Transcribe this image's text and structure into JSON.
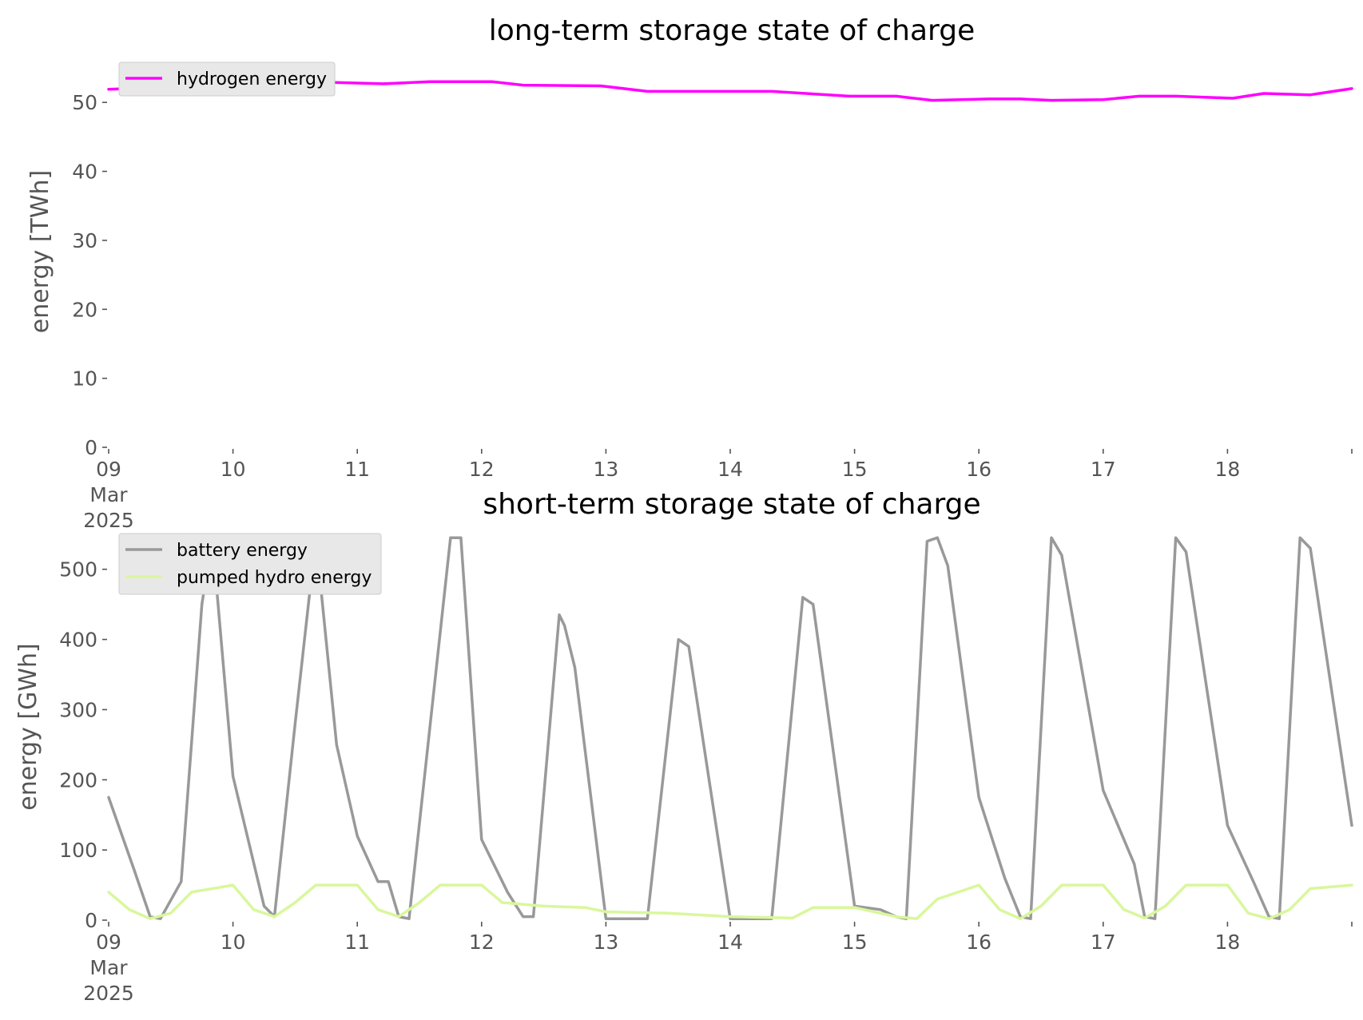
{
  "chart_data": [
    {
      "type": "line",
      "title": "long-term storage state of charge",
      "xlabel": "",
      "ylabel": "energy [TWh]",
      "xlim": [
        "2025-03-09 00:00",
        "2025-03-19 00:00"
      ],
      "ylim": [
        0,
        55
      ],
      "yticks": [
        0,
        10,
        20,
        30,
        40,
        50
      ],
      "xtick_labels": [
        [
          "09",
          "Mar",
          "2025"
        ],
        [
          "10"
        ],
        [
          "11"
        ],
        [
          "12"
        ],
        [
          "13"
        ],
        [
          "14"
        ],
        [
          "15"
        ],
        [
          "16"
        ],
        [
          "17"
        ],
        [
          "18"
        ]
      ],
      "legend_position": "top-left",
      "grid": false,
      "series": [
        {
          "name": "hydrogen energy",
          "color": "#ff00ff",
          "x": [
            "2025-03-09 00:00",
            "2025-03-09 12:00",
            "2025-03-10 03:00",
            "2025-03-10 14:00",
            "2025-03-11 05:00",
            "2025-03-11 14:00",
            "2025-03-12 02:00",
            "2025-03-12 08:00",
            "2025-03-12 23:00",
            "2025-03-13 08:00",
            "2025-03-13 23:00",
            "2025-03-14 08:00",
            "2025-03-14 23:00",
            "2025-03-15 08:00",
            "2025-03-15 15:00",
            "2025-03-16 02:00",
            "2025-03-16 08:00",
            "2025-03-16 14:00",
            "2025-03-17 00:00",
            "2025-03-17 07:00",
            "2025-03-17 14:00",
            "2025-03-18 01:00",
            "2025-03-18 07:00",
            "2025-03-18 16:00",
            "2025-03-19 00:00"
          ],
          "y": [
            51.9,
            52.2,
            52.8,
            53.0,
            52.7,
            53.0,
            53.0,
            52.5,
            52.4,
            51.6,
            51.6,
            51.6,
            50.9,
            50.9,
            50.3,
            50.5,
            50.5,
            50.3,
            50.4,
            50.9,
            50.9,
            50.6,
            51.3,
            51.1,
            52.0
          ]
        }
      ]
    },
    {
      "type": "line",
      "title": "short-term storage state of charge",
      "xlabel": "",
      "ylabel": "energy [GWh]",
      "xlim": [
        "2025-03-09 00:00",
        "2025-03-19 00:00"
      ],
      "ylim": [
        0,
        560
      ],
      "yticks": [
        0,
        100,
        200,
        300,
        400,
        500
      ],
      "xtick_labels": [
        [
          "09",
          "Mar",
          "2025"
        ],
        [
          "10"
        ],
        [
          "11"
        ],
        [
          "12"
        ],
        [
          "13"
        ],
        [
          "14"
        ],
        [
          "15"
        ],
        [
          "16"
        ],
        [
          "17"
        ],
        [
          "18"
        ]
      ],
      "legend_position": "top-left",
      "grid": false,
      "series": [
        {
          "name": "battery energy",
          "color": "#999999",
          "x": [
            "2025-03-09 00:00",
            "2025-03-09 05:00",
            "2025-03-09 08:00",
            "2025-03-09 10:00",
            "2025-03-09 14:00",
            "2025-03-09 18:00",
            "2025-03-09 20:00",
            "2025-03-10 00:00",
            "2025-03-10 06:00",
            "2025-03-10 08:00",
            "2025-03-10 12:00",
            "2025-03-10 16:00",
            "2025-03-10 20:00",
            "2025-03-11 00:00",
            "2025-03-11 04:00",
            "2025-03-11 06:00",
            "2025-03-11 08:00",
            "2025-03-11 10:00",
            "2025-03-11 18:00",
            "2025-03-11 20:00",
            "2025-03-12 00:00",
            "2025-03-12 05:00",
            "2025-03-12 08:00",
            "2025-03-12 10:00",
            "2025-03-12 15:00",
            "2025-03-12 16:00",
            "2025-03-12 18:00",
            "2025-03-13 00:00",
            "2025-03-13 08:00",
            "2025-03-13 14:00",
            "2025-03-13 16:00",
            "2025-03-14 00:00",
            "2025-03-14 08:00",
            "2025-03-14 14:00",
            "2025-03-14 16:00",
            "2025-03-15 00:00",
            "2025-03-15 05:00",
            "2025-03-15 08:00",
            "2025-03-15 10:00",
            "2025-03-15 14:00",
            "2025-03-15 16:00",
            "2025-03-15 18:00",
            "2025-03-16 00:00",
            "2025-03-16 05:00",
            "2025-03-16 08:00",
            "2025-03-16 10:00",
            "2025-03-16 14:00",
            "2025-03-16 16:00",
            "2025-03-17 00:00",
            "2025-03-17 06:00",
            "2025-03-17 08:00",
            "2025-03-17 10:00",
            "2025-03-17 14:00",
            "2025-03-17 16:00",
            "2025-03-18 00:00",
            "2025-03-18 05:00",
            "2025-03-18 08:00",
            "2025-03-18 10:00",
            "2025-03-18 14:00",
            "2025-03-18 16:00",
            "2025-03-19 00:00"
          ],
          "y": [
            175,
            70,
            5,
            2,
            55,
            450,
            545,
            205,
            20,
            5,
            280,
            545,
            250,
            120,
            55,
            55,
            5,
            2,
            545,
            545,
            115,
            40,
            5,
            5,
            435,
            420,
            360,
            2,
            2,
            400,
            390,
            2,
            2,
            460,
            450,
            20,
            15,
            5,
            2,
            540,
            545,
            505,
            175,
            60,
            5,
            2,
            545,
            520,
            185,
            80,
            5,
            2,
            545,
            525,
            135,
            55,
            5,
            2,
            545,
            530,
            135
          ]
        },
        {
          "name": "pumped hydro energy",
          "color": "#d9f79c",
          "x": [
            "2025-03-09 00:00",
            "2025-03-09 04:00",
            "2025-03-09 08:00",
            "2025-03-09 12:00",
            "2025-03-09 16:00",
            "2025-03-10 00:00",
            "2025-03-10 04:00",
            "2025-03-10 08:00",
            "2025-03-10 12:00",
            "2025-03-10 16:00",
            "2025-03-11 00:00",
            "2025-03-11 04:00",
            "2025-03-11 08:00",
            "2025-03-11 12:00",
            "2025-03-11 16:00",
            "2025-03-12 00:00",
            "2025-03-12 04:00",
            "2025-03-12 12:00",
            "2025-03-12 20:00",
            "2025-03-13 00:00",
            "2025-03-13 12:00",
            "2025-03-14 00:00",
            "2025-03-14 12:00",
            "2025-03-14 16:00",
            "2025-03-15 00:00",
            "2025-03-15 08:00",
            "2025-03-15 12:00",
            "2025-03-15 16:00",
            "2025-03-16 00:00",
            "2025-03-16 04:00",
            "2025-03-16 08:00",
            "2025-03-16 12:00",
            "2025-03-16 16:00",
            "2025-03-17 00:00",
            "2025-03-17 04:00",
            "2025-03-17 08:00",
            "2025-03-17 12:00",
            "2025-03-17 16:00",
            "2025-03-18 00:00",
            "2025-03-18 04:00",
            "2025-03-18 08:00",
            "2025-03-18 12:00",
            "2025-03-18 16:00",
            "2025-03-19 00:00"
          ],
          "y": [
            40,
            15,
            2,
            10,
            40,
            50,
            15,
            5,
            25,
            50,
            50,
            15,
            5,
            25,
            50,
            50,
            25,
            20,
            18,
            12,
            10,
            5,
            3,
            18,
            18,
            5,
            2,
            30,
            50,
            15,
            2,
            20,
            50,
            50,
            15,
            3,
            20,
            50,
            50,
            10,
            2,
            15,
            45,
            50
          ]
        }
      ]
    }
  ]
}
